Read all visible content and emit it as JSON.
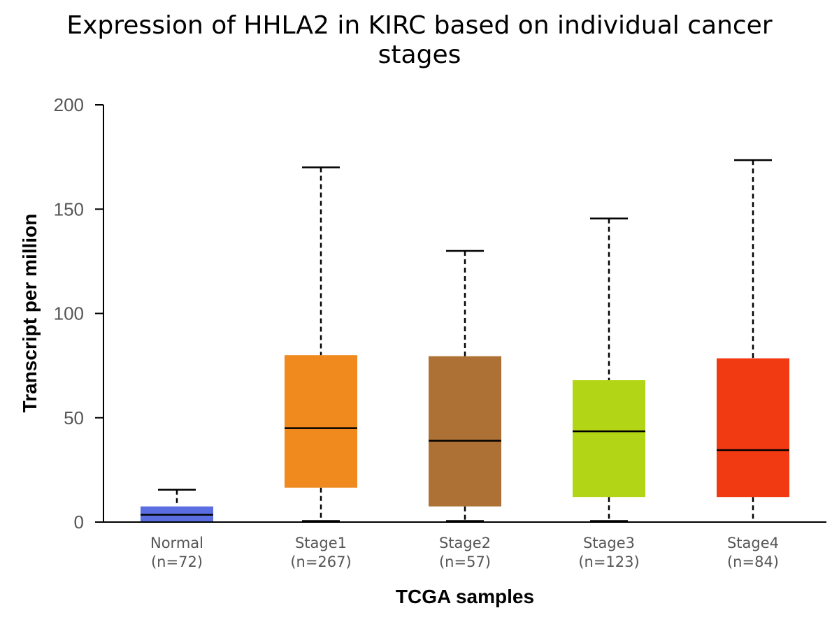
{
  "chart_data": {
    "type": "box",
    "title": "Expression of HHLA2 in KIRC based on individual cancer stages",
    "title_lines": [
      "Expression of HHLA2 in KIRC based on individual cancer",
      "stages"
    ],
    "xlabel": "TCGA samples",
    "ylabel": "Transcript per million",
    "ylim": [
      0,
      200
    ],
    "yticks": [
      "0",
      "50",
      "100",
      "150",
      "200"
    ],
    "grid": false,
    "categories": [
      {
        "name": "Normal",
        "n": "(n=72)",
        "color": "#5b6ee1",
        "min": 0,
        "q1": 0,
        "median": 3.5,
        "q3": 7.5,
        "max": 15.5
      },
      {
        "name": "Stage1",
        "n": "(n=267)",
        "color": "#f0891e",
        "min": 0.5,
        "q1": 16.5,
        "median": 45,
        "q3": 80,
        "max": 170
      },
      {
        "name": "Stage2",
        "n": "(n=57)",
        "color": "#ad7136",
        "min": 0.5,
        "q1": 7.5,
        "median": 39,
        "q3": 79.5,
        "max": 130
      },
      {
        "name": "Stage3",
        "n": "(n=123)",
        "color": "#b2d616",
        "min": 0.5,
        "q1": 12,
        "median": 43.5,
        "q3": 68,
        "max": 145.5
      },
      {
        "name": "Stage4",
        "n": "(n=84)",
        "color": "#f23a12",
        "min": 0,
        "q1": 12,
        "median": 34.5,
        "q3": 78.5,
        "max": 173.5
      }
    ]
  }
}
